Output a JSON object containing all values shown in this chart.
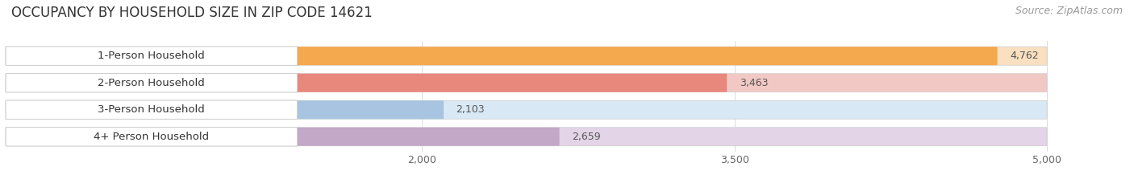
{
  "title": "OCCUPANCY BY HOUSEHOLD SIZE IN ZIP CODE 14621",
  "source": "Source: ZipAtlas.com",
  "categories": [
    "1-Person Household",
    "2-Person Household",
    "3-Person Household",
    "4+ Person Household"
  ],
  "values": [
    4762,
    3463,
    2103,
    2659
  ],
  "bar_colors": [
    "#F5A94E",
    "#E8877C",
    "#A8C4E0",
    "#C4A8C8"
  ],
  "bar_bg_colors": [
    "#FAE0C0",
    "#F2C8C4",
    "#D8E8F4",
    "#E4D4E8"
  ],
  "xlim_min": 0,
  "xlim_max": 5000,
  "xticks": [
    2000,
    3500,
    5000
  ],
  "xticklabels": [
    "2,000",
    "3,500",
    "5,000"
  ],
  "background_color": "#ffffff",
  "title_fontsize": 12,
  "source_fontsize": 9,
  "label_fontsize": 9.5,
  "value_fontsize": 9,
  "tick_fontsize": 9
}
